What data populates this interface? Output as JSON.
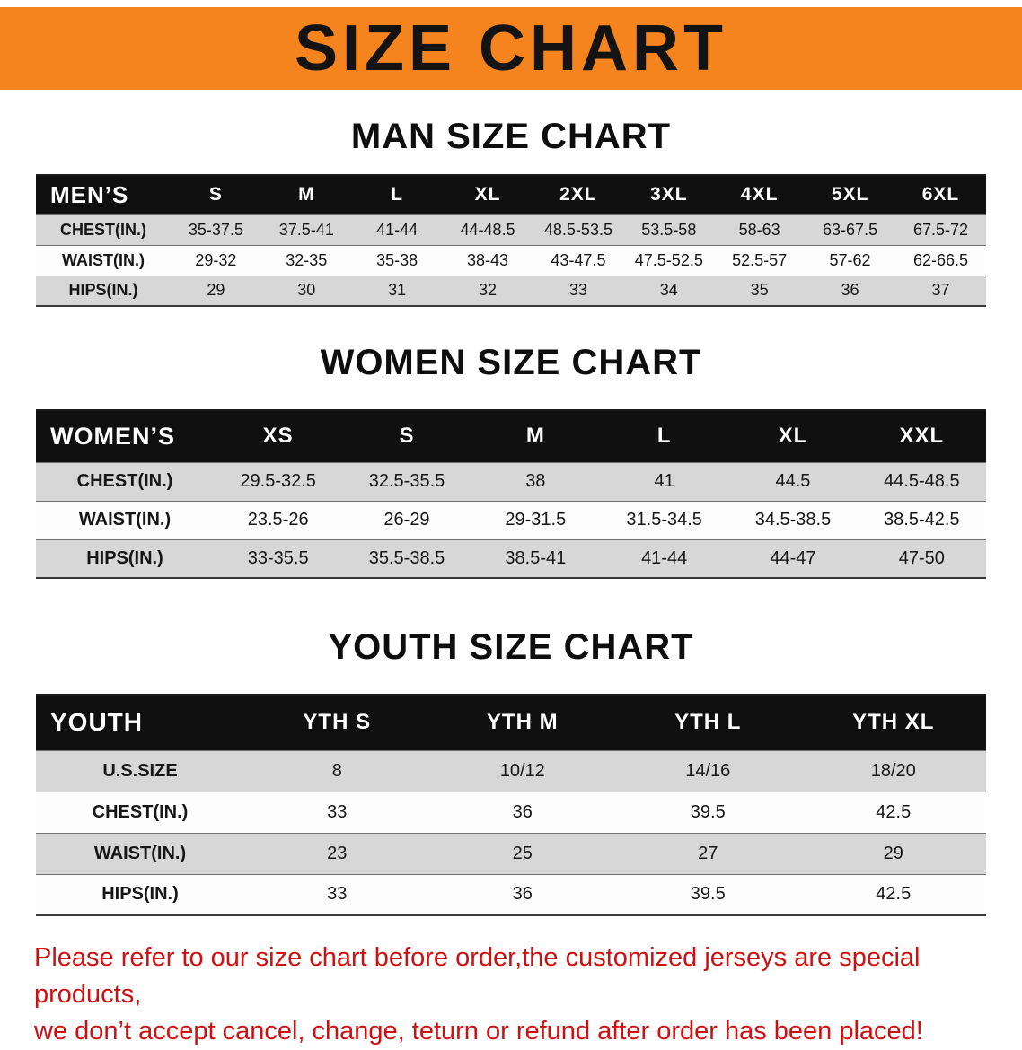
{
  "banner": {
    "title": "SIZE CHART"
  },
  "colors": {
    "banner_orange": "#f6841e",
    "table_header_black": "#101010",
    "row_gray": "#d7d7d7",
    "disclaimer_red": "#cf1010"
  },
  "sections": [
    {
      "heading": "MAN SIZE CHART",
      "table": {
        "header": [
          "MEN’S",
          "S",
          "M",
          "L",
          "XL",
          "2XL",
          "3XL",
          "4XL",
          "5XL",
          "6XL"
        ],
        "rows": [
          [
            "CHEST(IN.)",
            "35-37.5",
            "37.5-41",
            "41-44",
            "44-48.5",
            "48.5-53.5",
            "53.5-58",
            "58-63",
            "63-67.5",
            "67.5-72"
          ],
          [
            "WAIST(IN.)",
            "29-32",
            "32-35",
            "35-38",
            "38-43",
            "43-47.5",
            "47.5-52.5",
            "52.5-57",
            "57-62",
            "62-66.5"
          ],
          [
            "HIPS(IN.)",
            "29",
            "30",
            "31",
            "32",
            "33",
            "34",
            "35",
            "36",
            "37"
          ]
        ]
      }
    },
    {
      "heading": "WOMEN SIZE CHART",
      "table": {
        "header": [
          "WOMEN’S",
          "XS",
          "S",
          "M",
          "L",
          "XL",
          "XXL"
        ],
        "rows": [
          [
            "CHEST(IN.)",
            "29.5-32.5",
            "32.5-35.5",
            "38",
            "41",
            "44.5",
            "44.5-48.5"
          ],
          [
            "WAIST(IN.)",
            "23.5-26",
            "26-29",
            "29-31.5",
            "31.5-34.5",
            "34.5-38.5",
            "38.5-42.5"
          ],
          [
            "HIPS(IN.)",
            "33-35.5",
            "35.5-38.5",
            "38.5-41",
            "41-44",
            "44-47",
            "47-50"
          ]
        ]
      }
    },
    {
      "heading": "YOUTH SIZE CHART",
      "table": {
        "header": [
          "YOUTH",
          "YTH S",
          "YTH M",
          "YTH L",
          "YTH XL"
        ],
        "rows": [
          [
            "U.S.SIZE",
            "8",
            "10/12",
            "14/16",
            "18/20"
          ],
          [
            "CHEST(IN.)",
            "33",
            "36",
            "39.5",
            "42.5"
          ],
          [
            "WAIST(IN.)",
            "23",
            "25",
            "27",
            "29"
          ],
          [
            "HIPS(IN.)",
            "33",
            "36",
            "39.5",
            "42.5"
          ]
        ]
      }
    }
  ],
  "footer": {
    "line1": "Please refer to our size chart before order,the customized jerseys are special products,",
    "line2": "we don’t accept cancel, change, teturn or refund after order has been placed!"
  }
}
